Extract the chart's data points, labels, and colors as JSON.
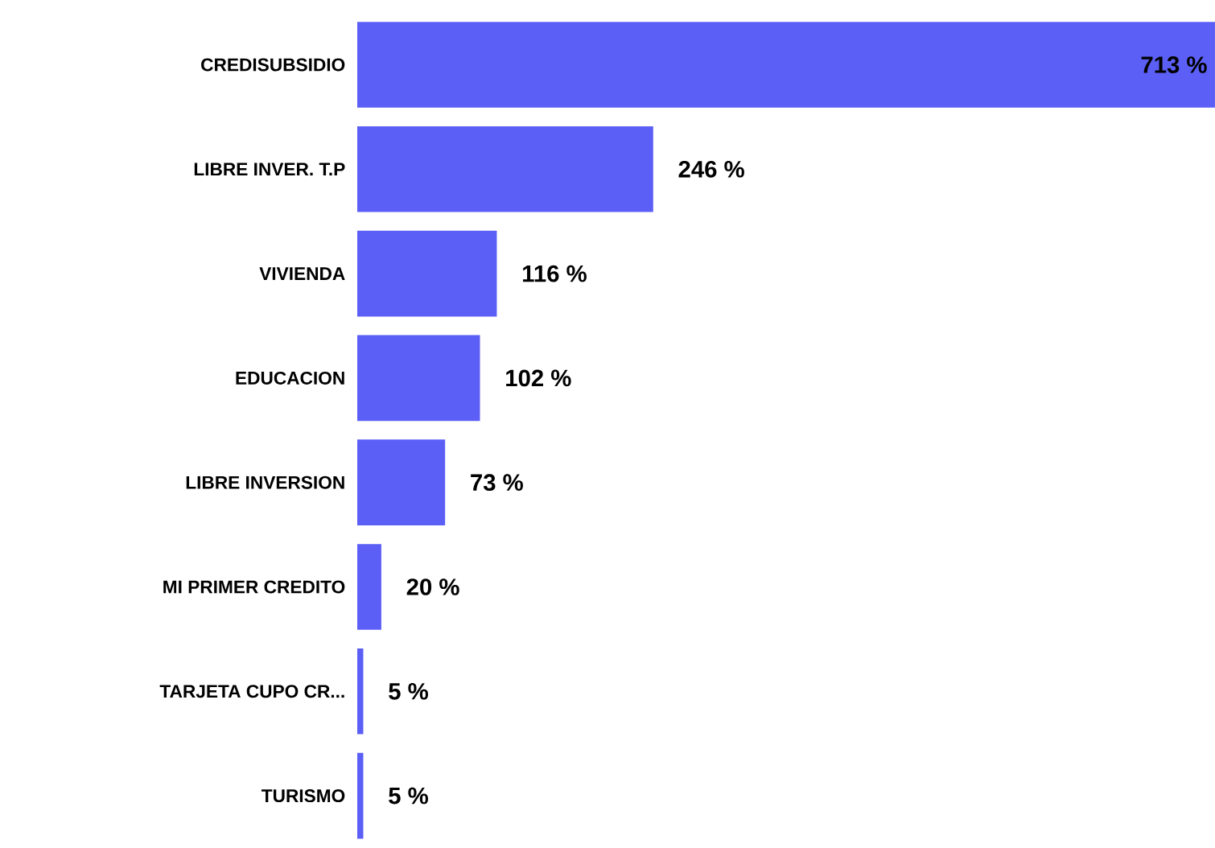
{
  "chart_data": {
    "type": "bar",
    "orientation": "horizontal",
    "color": "#5b5ff6",
    "categories": [
      "CREDISUBSIDIO",
      "LIBRE INVER. T.P",
      "VIVIENDA",
      "EDUCACION",
      "LIBRE INVERSION",
      "MI PRIMER CREDITO",
      "TARJETA CUPO CR...",
      "TURISMO"
    ],
    "values": [
      713,
      246,
      116,
      102,
      73,
      20,
      5,
      5
    ],
    "value_labels": [
      "713 %",
      "246 %",
      "116 %",
      "102 %",
      "73 %",
      "20 %",
      "5 %",
      "5 %"
    ]
  }
}
